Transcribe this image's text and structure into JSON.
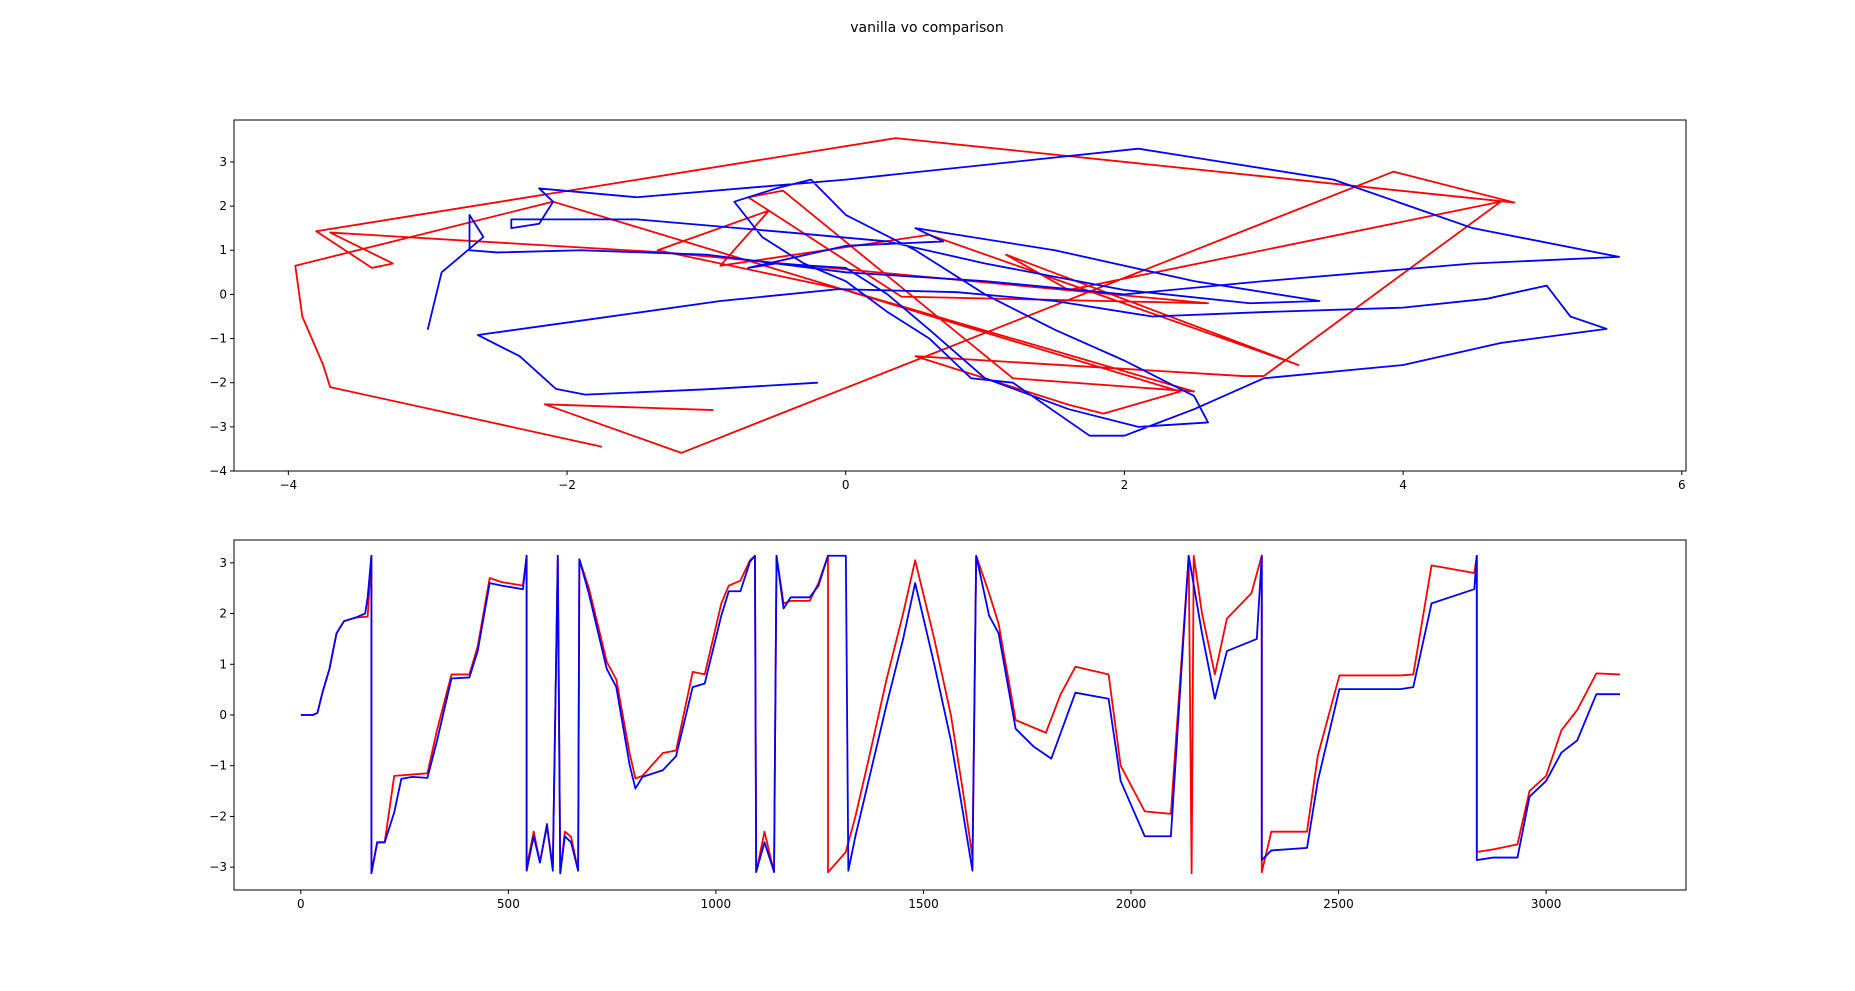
{
  "title": "vanilla vo comparison",
  "chart_data": [
    {
      "type": "line",
      "xlim": [
        -4.39,
        6.03
      ],
      "ylim": [
        -4,
        3.95
      ],
      "xticks": [
        {
          "value": -4,
          "label": "−4"
        },
        {
          "value": -2,
          "label": "−2"
        },
        0,
        2,
        4,
        6
      ],
      "yticks": [
        {
          "value": -4,
          "label": "−4"
        },
        {
          "value": -3,
          "label": "−3"
        },
        {
          "value": -2,
          "label": "−2"
        },
        {
          "value": -1,
          "label": "−1"
        },
        0,
        1,
        2,
        3
      ],
      "series": [
        {
          "color": "#ff0000",
          "x": [
            -0.95,
            -2.16,
            -1.18,
            3.93,
            4.8,
            0.36,
            -3.8,
            -3.4,
            -3.25,
            -3.7,
            -1.3,
            2.6,
            0.4,
            -0.7,
            -0.45,
            1.2,
            2.5,
            0.0,
            -1.35,
            -0.55,
            -0.9,
            0.6,
            3.25,
            1.15,
            1.6,
            4.7,
            3.0,
            2.85,
            0.5,
            1.6,
            1.85,
            2.4,
            -2.1,
            -3.95,
            -3.9,
            -3.75,
            -3.7,
            -1.75
          ],
          "values": [
            -2.62,
            -2.49,
            -3.59,
            2.78,
            2.08,
            3.54,
            1.43,
            0.6,
            0.7,
            1.4,
            0.95,
            -0.2,
            -0.05,
            2.2,
            2.35,
            -1.9,
            -2.2,
            0.1,
            1.0,
            1.9,
            0.65,
            1.35,
            -1.6,
            0.9,
            0.1,
            2.1,
            -1.85,
            -1.85,
            -1.4,
            -2.5,
            -2.7,
            -2.2,
            2.1,
            0.65,
            -0.5,
            -1.6,
            -2.1,
            -3.45
          ]
        },
        {
          "color": "#0000ff",
          "x": [
            -0.2,
            -1.0,
            -1.87,
            -2.08,
            -2.34,
            -2.64,
            -1.8,
            -0.9,
            -0.05,
            0.8,
            1.5,
            2.2,
            3.0,
            4.0,
            4.6,
            5.03,
            5.2,
            5.46,
            4.7,
            4.0,
            3.0,
            2.5,
            2.0,
            1.75,
            1.2,
            0.9,
            0.6,
            0.3,
            0.0,
            -0.3,
            -0.6,
            -0.8,
            -0.5,
            -0.25,
            0.0,
            0.5,
            1.0,
            1.5,
            2.0,
            2.5,
            2.6,
            2.1,
            1.6,
            1.0,
            0.6,
            0.3,
            0.0,
            -0.5,
            -0.7,
            0.0,
            0.7,
            0.5,
            1.5,
            2.5,
            3.4,
            2.9,
            2.0,
            1.0,
            0.3,
            -0.4,
            -1.5,
            -2.4,
            -2.4,
            -2.2,
            -2.1,
            -2.2,
            -1.5,
            0.0,
            1.5,
            2.1,
            2.5,
            3.5,
            4.5,
            5.55,
            4.5,
            3.0,
            2.0,
            1.0,
            0.0,
            -1.0,
            -1.9,
            -2.5,
            -2.7,
            -2.7,
            -2.6,
            -2.9,
            -3.0
          ],
          "values": [
            -2.0,
            -2.15,
            -2.27,
            -2.14,
            -1.4,
            -0.92,
            -0.55,
            -0.15,
            0.12,
            0.05,
            -0.15,
            -0.5,
            -0.4,
            -0.3,
            -0.1,
            0.2,
            -0.5,
            -0.78,
            -1.1,
            -1.6,
            -1.9,
            -2.6,
            -3.2,
            -3.2,
            -2.0,
            -1.9,
            -1.0,
            -0.4,
            0.3,
            0.7,
            1.3,
            2.1,
            2.4,
            2.6,
            1.8,
            1.0,
            0.0,
            -0.8,
            -1.5,
            -2.3,
            -2.9,
            -3.0,
            -2.6,
            -1.9,
            -0.8,
            0.0,
            0.6,
            0.7,
            0.6,
            1.1,
            1.2,
            1.5,
            1.0,
            0.3,
            -0.15,
            -0.2,
            0.1,
            0.7,
            1.2,
            1.4,
            1.7,
            1.7,
            1.5,
            1.6,
            2.1,
            2.4,
            2.2,
            2.6,
            3.1,
            3.3,
            3.1,
            2.6,
            1.5,
            0.85,
            0.7,
            0.3,
            0.0,
            0.3,
            0.5,
            0.9,
            1.0,
            0.95,
            1.0,
            1.8,
            1.3,
            0.5,
            -0.8
          ]
        }
      ]
    },
    {
      "type": "line",
      "xlim": [
        -161,
        3337
      ],
      "ylim": [
        -3.45,
        3.45
      ],
      "xticks": [
        0,
        500,
        1000,
        1500,
        2000,
        2500,
        3000
      ],
      "yticks": [
        {
          "value": -3,
          "label": "−3"
        },
        {
          "value": -2,
          "label": "−2"
        },
        {
          "value": -1,
          "label": "−1"
        },
        0,
        1,
        2,
        3
      ],
      "series": [
        {
          "color": "#ff0000",
          "x": [
            0,
            29,
            40,
            52,
            69,
            86,
            104,
            132,
            161,
            170,
            170,
            184,
            202,
            225,
            305,
            328,
            363,
            406,
            426,
            455,
            484,
            535,
            544,
            544,
            561,
            576,
            593,
            607,
            619,
            625,
            636,
            651,
            668,
            671,
            694,
            737,
            760,
            792,
            806,
            823,
            872,
            904,
            944,
            973,
            1013,
            1031,
            1059,
            1082,
            1094,
            1097,
            1117,
            1140,
            1146,
            1163,
            1180,
            1226,
            1247,
            1270,
            1270,
            1313,
            1336,
            1370,
            1411,
            1451,
            1480,
            1526,
            1566,
            1595,
            1618,
            1627,
            1658,
            1681,
            1722,
            1795,
            1830,
            1866,
            1946,
            1975,
            2033,
            2096,
            2139,
            2146,
            2151,
            2171,
            2202,
            2231,
            2290,
            2315,
            2315,
            2338,
            2424,
            2450,
            2502,
            2649,
            2680,
            2724,
            2827,
            2833,
            2833,
            2873,
            2931,
            2960,
            3000,
            3037,
            3075,
            3121,
            3178
          ],
          "values": [
            0,
            0,
            0.04,
            0.44,
            0.91,
            1.61,
            1.85,
            1.92,
            1.94,
            3.14,
            -3.12,
            -2.51,
            -2.51,
            -1.2,
            -1.15,
            -0.3,
            0.8,
            0.8,
            1.35,
            2.7,
            2.62,
            2.55,
            3.14,
            -3.0,
            -2.3,
            -2.9,
            -2.2,
            -3.0,
            3.14,
            -3.12,
            -2.3,
            -2.4,
            -3.07,
            3.07,
            2.5,
            1.05,
            0.7,
            -0.75,
            -1.25,
            -1.2,
            -0.75,
            -0.7,
            0.85,
            0.8,
            2.2,
            2.55,
            2.65,
            3.05,
            3.14,
            -3.1,
            -2.3,
            -3.1,
            3.14,
            2.2,
            2.25,
            2.25,
            2.6,
            3.14,
            -3.1,
            -2.7,
            -2.0,
            -0.8,
            0.7,
            2.0,
            3.05,
            1.5,
            0,
            -1.5,
            -2.8,
            3.14,
            2.4,
            1.8,
            -0.1,
            -0.35,
            0.4,
            0.95,
            0.8,
            -1.0,
            -1.9,
            -1.95,
            3.14,
            -3.12,
            3.14,
            2.0,
            0.8,
            1.9,
            2.4,
            3.14,
            -3.1,
            -2.3,
            -2.3,
            -0.8,
            0.78,
            0.78,
            0.8,
            2.95,
            2.8,
            3.14,
            -2.7,
            -2.65,
            -2.55,
            -1.5,
            -1.2,
            -0.3,
            0.1,
            0.82,
            0.8
          ]
        },
        {
          "color": "#0000ff",
          "x": [
            0,
            29,
            40,
            52,
            69,
            86,
            104,
            132,
            155,
            161,
            170,
            170,
            184,
            202,
            225,
            242,
            268,
            305,
            328,
            363,
            406,
            426,
            455,
            484,
            535,
            544,
            544,
            561,
            576,
            593,
            607,
            619,
            625,
            636,
            651,
            668,
            671,
            694,
            737,
            760,
            792,
            806,
            823,
            872,
            904,
            944,
            973,
            1013,
            1031,
            1059,
            1082,
            1094,
            1097,
            1117,
            1140,
            1146,
            1163,
            1180,
            1226,
            1247,
            1270,
            1313,
            1319,
            1336,
            1370,
            1411,
            1451,
            1480,
            1526,
            1566,
            1595,
            1618,
            1627,
            1658,
            1681,
            1722,
            1765,
            1808,
            1866,
            1946,
            1975,
            2033,
            2096,
            2139,
            2171,
            2202,
            2231,
            2303,
            2315,
            2315,
            2338,
            2424,
            2450,
            2502,
            2649,
            2680,
            2724,
            2827,
            2833,
            2833,
            2873,
            2931,
            2960,
            3000,
            3037,
            3075,
            3121,
            3178
          ],
          "values": [
            0,
            0,
            0.04,
            0.44,
            0.91,
            1.61,
            1.85,
            1.92,
            2.0,
            2.32,
            3.14,
            -3.12,
            -2.51,
            -2.51,
            -1.92,
            -1.26,
            -1.22,
            -1.24,
            -0.51,
            0.72,
            0.74,
            1.26,
            2.6,
            2.55,
            2.48,
            3.14,
            -3.07,
            -2.39,
            -2.91,
            -2.15,
            -3.07,
            3.14,
            -3.12,
            -2.39,
            -2.51,
            -3.07,
            3.07,
            2.39,
            0.91,
            0.55,
            -0.98,
            -1.45,
            -1.22,
            -1.09,
            -0.81,
            0.55,
            0.62,
            1.96,
            2.44,
            2.44,
            3.02,
            3.14,
            -3.09,
            -2.51,
            -3.09,
            3.14,
            2.1,
            2.32,
            2.32,
            2.55,
            3.14,
            3.14,
            -3.07,
            -2.39,
            -1.22,
            0.2,
            1.5,
            2.6,
            1.0,
            -0.5,
            -1.92,
            -3.07,
            3.14,
            1.96,
            1.61,
            -0.27,
            -0.62,
            -0.86,
            0.44,
            0.32,
            -1.3,
            -2.39,
            -2.39,
            3.14,
            1.61,
            0.32,
            1.26,
            1.5,
            3.14,
            -2.86,
            -2.67,
            -2.62,
            -1.3,
            0.51,
            0.51,
            0.55,
            2.2,
            2.48,
            3.14,
            -2.86,
            -2.81,
            -2.81,
            -1.61,
            -1.3,
            -0.74,
            -0.5,
            0.41,
            0.41
          ]
        }
      ]
    }
  ]
}
